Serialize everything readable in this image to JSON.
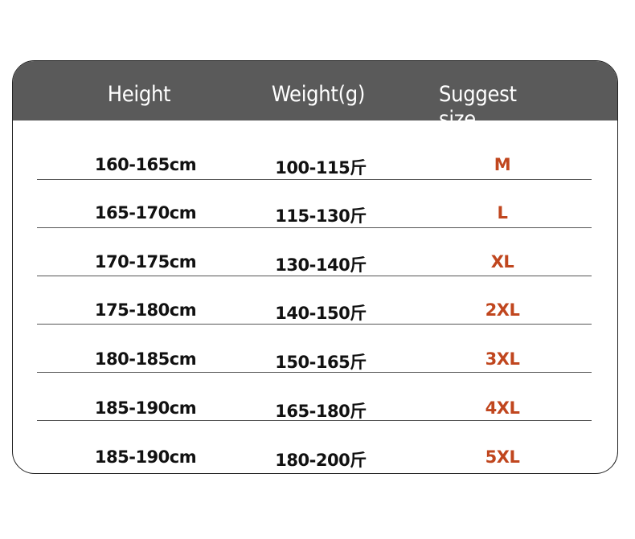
{
  "header": {
    "height": "Height",
    "weight": "Weight(g)",
    "size": "Suggest size"
  },
  "colors": {
    "header_bg": "#5a5a5a",
    "size_text": "#c0461e"
  },
  "rows": [
    {
      "height": "160-165cm",
      "weight": "100-115斤",
      "size": "M"
    },
    {
      "height": "165-170cm",
      "weight": "115-130斤",
      "size": "L"
    },
    {
      "height": "170-175cm",
      "weight": "130-140斤",
      "size": "XL"
    },
    {
      "height": "175-180cm",
      "weight": "140-150斤",
      "size": "2XL"
    },
    {
      "height": "180-185cm",
      "weight": "150-165斤",
      "size": "3XL"
    },
    {
      "height": "185-190cm",
      "weight": "165-180斤",
      "size": "4XL"
    },
    {
      "height": "185-190cm",
      "weight": "180-200斤",
      "size": "5XL"
    }
  ]
}
